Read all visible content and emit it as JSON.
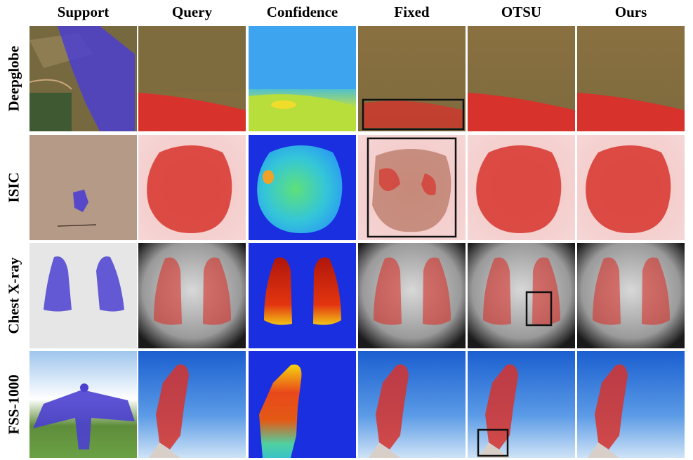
{
  "columns": [
    "Support",
    "Query",
    "Confidence",
    "Fixed",
    "OTSU",
    "Ours"
  ],
  "rows": [
    "Deepglobe",
    "ISIC",
    "Chest X-ray",
    "FSS-1000"
  ],
  "images": {
    "support": [
      "support-overlay-blue",
      "support-overlay-blue",
      "support-overlay-blue",
      "support-overlay-blue"
    ],
    "query": [
      "query-mask-red",
      "query-mask-red",
      "query-mask-red",
      "query-mask-red"
    ],
    "confidence": [
      "heatmap",
      "heatmap",
      "heatmap",
      "heatmap"
    ],
    "fixed": [
      "mask-red-with-box",
      "mask-red-with-box",
      "mask-red",
      "mask-red"
    ],
    "otsu": [
      "mask-red",
      "mask-red",
      "mask-red-with-box",
      "mask-red-with-box"
    ],
    "ours": [
      "mask-red",
      "mask-red",
      "mask-red",
      "mask-red"
    ]
  },
  "colors": {
    "support_mask": "#4b3fd0",
    "query_mask": "#d7322c",
    "box": "#111111",
    "heat_low": "#1a2fe0",
    "heat_high": "#c51c10"
  }
}
